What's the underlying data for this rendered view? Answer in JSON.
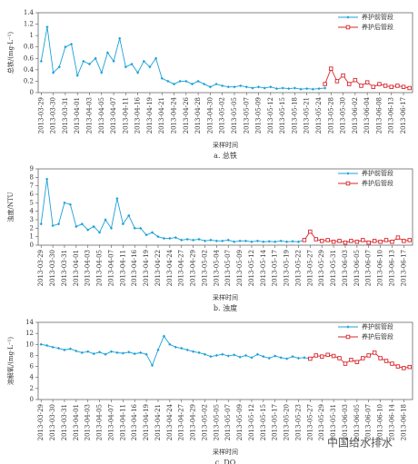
{
  "chart_data": [
    {
      "type": "line",
      "y_label": "总铁/(mg·L⁻¹)",
      "x_label": "采样时间",
      "caption": "a. 总铁",
      "categories": [
        "2013-03-29",
        null,
        "2013-03-30",
        null,
        "2013-03-31",
        null,
        "2013-04-01",
        null,
        "2013-04-03",
        null,
        "2013-04-05",
        null,
        "2013-04-07",
        null,
        "2013-04-11",
        null,
        "2013-04-16",
        null,
        "2013-04-19",
        null,
        "2013-04-21",
        null,
        "2013-04-24",
        null,
        "2013-04-26",
        null,
        "2013-04-28",
        null,
        "2013-04-30",
        null,
        "2013-05-02",
        null,
        "2013-05-05",
        null,
        "2013-05-07",
        null,
        "2013-05-09",
        null,
        "2013-05-12",
        null,
        "2013-05-15",
        null,
        "2013-05-18",
        null,
        "2013-05-21",
        null,
        "2013-05-24",
        null,
        "2013-05-28",
        null,
        "2013-05-30",
        null,
        "2013-06-02",
        null,
        "2013-06-04",
        null,
        "2013-06-08",
        null,
        "2013-06-13",
        null,
        "2013-06-17",
        null
      ],
      "series": [
        {
          "name": "养护前管段",
          "color": "#1ba1d8",
          "values": [
            0.55,
            1.15,
            0.35,
            0.45,
            0.8,
            0.85,
            0.3,
            0.55,
            0.5,
            0.6,
            0.35,
            0.7,
            0.55,
            0.95,
            0.45,
            0.5,
            0.35,
            0.55,
            0.45,
            0.6,
            0.25,
            0.2,
            0.15,
            0.2,
            0.2,
            0.15,
            0.2,
            0.15,
            0.1,
            0.15,
            0.12,
            0.1,
            0.1,
            0.12,
            0.1,
            0.08,
            0.1,
            0.08,
            0.1,
            0.07,
            0.08,
            0.07,
            0.08,
            0.06,
            0.07,
            0.06,
            0.07,
            0.08,
            null,
            null,
            null,
            null,
            null,
            null,
            null,
            null,
            null,
            null,
            null,
            null,
            null,
            null
          ]
        },
        {
          "name": "养护后管段",
          "color": "#d9262c",
          "values": [
            null,
            null,
            null,
            null,
            null,
            null,
            null,
            null,
            null,
            null,
            null,
            null,
            null,
            null,
            null,
            null,
            null,
            null,
            null,
            null,
            null,
            null,
            null,
            null,
            null,
            null,
            null,
            null,
            null,
            null,
            null,
            null,
            null,
            null,
            null,
            null,
            null,
            null,
            null,
            null,
            null,
            null,
            null,
            null,
            null,
            null,
            null,
            0.15,
            0.42,
            0.2,
            0.3,
            0.15,
            0.22,
            0.12,
            0.18,
            0.1,
            0.15,
            0.12,
            0.1,
            0.12,
            0.1,
            0.08
          ]
        }
      ],
      "ylim": [
        0,
        1.4
      ],
      "yticks": [
        0,
        0.2,
        0.4,
        0.6,
        0.8,
        1,
        1.2,
        1.4
      ]
    },
    {
      "type": "line",
      "y_label": "浊度/NTU",
      "x_label": "采样时间",
      "caption": "b. 浊度",
      "categories": [
        "2013-03-29",
        null,
        "2013-03-30",
        null,
        "2013-03-31",
        null,
        "2013-04-01",
        null,
        "2013-04-03",
        null,
        "2013-04-05",
        null,
        "2013-04-07",
        null,
        "2013-04-11",
        null,
        "2013-04-16",
        null,
        "2013-04-19",
        null,
        "2013-04-22",
        null,
        "2013-04-24",
        null,
        "2013-04-27",
        null,
        "2013-04-29",
        null,
        "2013-05-02",
        null,
        "2013-05-04",
        null,
        "2013-05-07",
        null,
        "2013-05-09",
        null,
        "2013-05-12",
        null,
        "2013-05-14",
        null,
        "2013-05-17",
        null,
        "2013-05-19",
        null,
        "2013-05-22",
        null,
        "2013-05-27",
        null,
        "2013-05-29",
        null,
        "2013-05-31",
        null,
        "2013-06-03",
        null,
        "2013-06-05",
        null,
        "2013-06-07",
        null,
        "2013-06-10",
        null,
        "2013-06-13",
        null,
        "2013-06-17",
        null
      ],
      "series": [
        {
          "name": "养护前管段",
          "color": "#1ba1d8",
          "values": [
            2.5,
            7.8,
            2.3,
            2.5,
            5,
            4.8,
            2.2,
            2.5,
            1.8,
            2.2,
            1.5,
            3,
            2,
            5.5,
            2.5,
            3.5,
            2,
            2,
            1.2,
            1.5,
            1,
            0.8,
            0.8,
            0.9,
            0.6,
            0.7,
            0.6,
            0.7,
            0.5,
            0.6,
            0.5,
            0.5,
            0.6,
            0.4,
            0.5,
            0.5,
            0.4,
            0.5,
            0.4,
            0.45,
            0.4,
            0.5,
            0.4,
            0.45,
            0.4,
            0.6,
            null,
            null,
            null,
            null,
            null,
            null,
            null,
            null,
            null,
            null,
            null,
            null,
            null,
            null,
            null,
            null,
            null,
            null
          ]
        },
        {
          "name": "养护后管段",
          "color": "#d9262c",
          "values": [
            null,
            null,
            null,
            null,
            null,
            null,
            null,
            null,
            null,
            null,
            null,
            null,
            null,
            null,
            null,
            null,
            null,
            null,
            null,
            null,
            null,
            null,
            null,
            null,
            null,
            null,
            null,
            null,
            null,
            null,
            null,
            null,
            null,
            null,
            null,
            null,
            null,
            null,
            null,
            null,
            null,
            null,
            null,
            null,
            null,
            0.6,
            1.6,
            0.7,
            0.5,
            0.6,
            0.4,
            0.5,
            0.3,
            0.5,
            0.4,
            0.6,
            0.3,
            0.5,
            0.4,
            0.6,
            0.4,
            0.9,
            0.5,
            0.6
          ]
        }
      ],
      "ylim": [
        0,
        9
      ],
      "yticks": [
        0,
        1,
        2,
        3,
        4,
        5,
        6,
        7,
        8,
        9
      ]
    },
    {
      "type": "line",
      "y_label": "溶解氧/(mg·L⁻¹)",
      "x_label": "采样时间",
      "caption": "c. DO",
      "categories": [
        "2013-03-29",
        null,
        "2013-03-30",
        null,
        "2013-03-31",
        null,
        "2013-04-01",
        null,
        "2013-04-03",
        null,
        "2013-04-05",
        null,
        "2013-04-07",
        null,
        "2013-04-11",
        null,
        "2013-04-16",
        null,
        "2013-04-19",
        null,
        "2013-04-21",
        null,
        "2013-04-24",
        null,
        "2013-04-27",
        null,
        "2013-04-29",
        null,
        "2013-05-02",
        null,
        "2013-05-05",
        null,
        "2013-05-07",
        null,
        "2013-05-09",
        null,
        "2013-05-12",
        null,
        "2013-05-15",
        null,
        "2013-05-17",
        null,
        "2013-05-20",
        null,
        "2013-05-23",
        null,
        "2013-05-27",
        null,
        "2013-05-29",
        null,
        "2013-05-31",
        null,
        "2013-06-03",
        null,
        "2013-06-05",
        null,
        "2013-06-07",
        null,
        "2013-06-10",
        null,
        "2013-06-14",
        null,
        "2013-06-18",
        null
      ],
      "series": [
        {
          "name": "养护前管段",
          "color": "#1ba1d8",
          "values": [
            10,
            9.8,
            9.5,
            9.3,
            9,
            9.2,
            8.8,
            8.5,
            8.7,
            8.3,
            8.6,
            8.2,
            8.7,
            8.5,
            8.4,
            8.6,
            8.3,
            8.5,
            8.2,
            6.2,
            9,
            11.5,
            10,
            9.5,
            9.3,
            9,
            8.7,
            8.5,
            8.2,
            7.8,
            8,
            8.2,
            7.9,
            8.1,
            7.7,
            8,
            7.6,
            8.2,
            7.8,
            7.5,
            7.9,
            7.6,
            7.4,
            7.8,
            7.5,
            7.6,
            7.4,
            null,
            null,
            null,
            null,
            null,
            null,
            null,
            null,
            null,
            null,
            null,
            null,
            null,
            null,
            null,
            null,
            null
          ]
        },
        {
          "name": "养护后管段",
          "color": "#d9262c",
          "values": [
            null,
            null,
            null,
            null,
            null,
            null,
            null,
            null,
            null,
            null,
            null,
            null,
            null,
            null,
            null,
            null,
            null,
            null,
            null,
            null,
            null,
            null,
            null,
            null,
            null,
            null,
            null,
            null,
            null,
            null,
            null,
            null,
            null,
            null,
            null,
            null,
            null,
            null,
            null,
            null,
            null,
            null,
            null,
            null,
            null,
            null,
            7.4,
            8,
            7.8,
            8.1,
            7.9,
            7.5,
            6.5,
            7.2,
            6.8,
            7.5,
            8,
            8.5,
            7.5,
            7,
            6.5,
            6,
            5.7,
            5.9
          ]
        }
      ],
      "ylim": [
        0,
        14
      ],
      "yticks": [
        0,
        2,
        4,
        6,
        8,
        10,
        12,
        14
      ]
    }
  ],
  "watermark": "中国给水排水"
}
